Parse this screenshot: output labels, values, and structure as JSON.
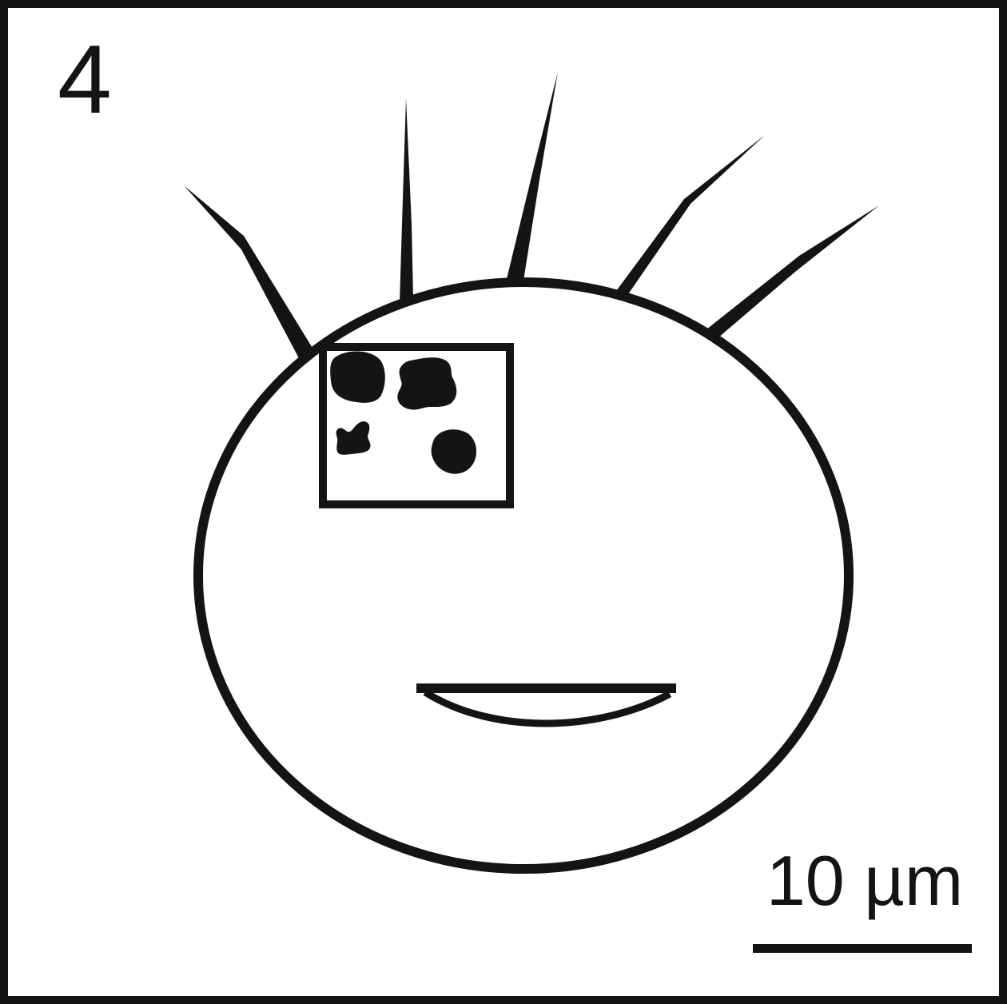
{
  "panel": {
    "label": "4"
  },
  "scale_bar": {
    "label": "10 µm"
  },
  "colors": {
    "ink": "#141412",
    "background": "#ffffff"
  }
}
